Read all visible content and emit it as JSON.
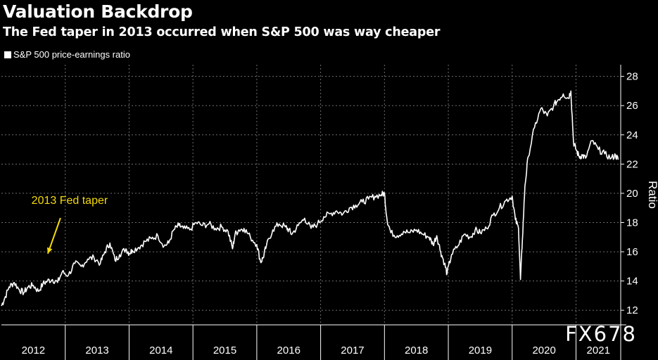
{
  "header": {
    "title": "Valuation Backdrop",
    "subtitle": "The Fed taper in 2013 occurred when S&P 500 was way cheaper"
  },
  "legend": {
    "label": "S&P 500 price-earnings ratio"
  },
  "watermark": "FX678",
  "colors": {
    "background": "#000000",
    "line": "#ffffff",
    "annotation": "#f5d90a",
    "grid": "#6e6e6e"
  },
  "chart_data": {
    "type": "line",
    "title": "Valuation Backdrop",
    "subtitle": "The Fed taper in 2013 occurred when S&P 500 was way cheaper",
    "xlabel": "",
    "ylabel": "Ratio",
    "ylim": [
      11,
      28.8
    ],
    "xlim": [
      2012.0,
      2021.7
    ],
    "yticks": [
      12,
      14,
      16,
      18,
      20,
      22,
      24,
      26,
      28
    ],
    "xtick_labels": [
      "2012",
      "2013",
      "2014",
      "2015",
      "2016",
      "2017",
      "2018",
      "2019",
      "2020",
      "2021"
    ],
    "x_axis_years": [
      2012,
      2013,
      2014,
      2015,
      2016,
      2017,
      2018,
      2019,
      2020,
      2021
    ],
    "grid": true,
    "series": [
      {
        "name": "S&P 500 price-earnings ratio",
        "x": [
          2012.0,
          2012.05,
          2012.12,
          2012.2,
          2012.28,
          2012.35,
          2012.42,
          2012.5,
          2012.58,
          2012.65,
          2012.72,
          2012.8,
          2012.88,
          2012.95,
          2013.05,
          2013.15,
          2013.25,
          2013.35,
          2013.45,
          2013.55,
          2013.62,
          2013.7,
          2013.78,
          2013.85,
          2013.95,
          2014.0,
          2014.05,
          2014.15,
          2014.25,
          2014.35,
          2014.45,
          2014.55,
          2014.62,
          2014.7,
          2014.78,
          2014.85,
          2014.95,
          2015.05,
          2015.15,
          2015.25,
          2015.35,
          2015.45,
          2015.55,
          2015.62,
          2015.66,
          2015.72,
          2015.8,
          2015.9,
          2016.0,
          2016.06,
          2016.1,
          2016.15,
          2016.25,
          2016.35,
          2016.45,
          2016.5,
          2016.55,
          2016.65,
          2016.75,
          2016.85,
          2016.95,
          2017.05,
          2017.15,
          2017.25,
          2017.35,
          2017.45,
          2017.55,
          2017.65,
          2017.75,
          2017.85,
          2017.95,
          2018.0,
          2018.04,
          2018.1,
          2018.2,
          2018.3,
          2018.4,
          2018.5,
          2018.6,
          2018.7,
          2018.76,
          2018.82,
          2018.88,
          2018.94,
          2018.98,
          2019.05,
          2019.15,
          2019.25,
          2019.35,
          2019.42,
          2019.5,
          2019.6,
          2019.7,
          2019.8,
          2019.9,
          2020.0,
          2020.05,
          2020.1,
          2020.13,
          2020.16,
          2020.2,
          2020.25,
          2020.35,
          2020.45,
          2020.55,
          2020.65,
          2020.72,
          2020.8,
          2020.88,
          2020.92,
          2020.96,
          2021.0,
          2021.05,
          2021.1,
          2021.15,
          2021.25,
          2021.35,
          2021.45,
          2021.55,
          2021.62,
          2021.66
        ],
        "values": [
          12.3,
          12.8,
          13.6,
          13.9,
          13.4,
          13.2,
          13.6,
          13.7,
          13.3,
          13.8,
          14.0,
          14.1,
          13.9,
          14.6,
          14.4,
          15.2,
          15.0,
          15.5,
          15.6,
          15.2,
          16.0,
          16.6,
          15.4,
          15.8,
          16.2,
          15.9,
          16.1,
          16.3,
          16.7,
          16.9,
          17.1,
          16.4,
          16.6,
          17.5,
          17.8,
          17.6,
          17.5,
          18.0,
          17.8,
          17.9,
          17.6,
          17.7,
          17.4,
          16.2,
          17.2,
          17.5,
          17.6,
          17.0,
          16.5,
          15.3,
          15.6,
          16.4,
          17.5,
          17.9,
          17.7,
          17.5,
          17.2,
          17.8,
          18.3,
          17.6,
          17.9,
          18.4,
          18.6,
          18.8,
          18.6,
          19.0,
          19.2,
          19.4,
          19.6,
          19.8,
          19.9,
          20.0,
          18.2,
          17.3,
          17.1,
          17.4,
          17.3,
          17.5,
          17.2,
          17.0,
          16.5,
          17.1,
          16.0,
          15.2,
          14.5,
          15.8,
          16.4,
          17.2,
          17.0,
          17.5,
          17.3,
          17.6,
          18.5,
          19.0,
          19.5,
          19.8,
          18.2,
          17.6,
          14.1,
          16.8,
          20.5,
          22.5,
          24.5,
          25.8,
          25.3,
          26.0,
          26.4,
          26.8,
          26.5,
          27.0,
          23.5,
          23.0,
          22.5,
          22.6,
          22.4,
          23.6,
          23.0,
          22.7,
          22.4,
          22.6,
          22.3
        ]
      }
    ],
    "annotations": [
      {
        "text": "2013 Fed taper",
        "x": 2013.3,
        "y": 15.2
      }
    ]
  }
}
